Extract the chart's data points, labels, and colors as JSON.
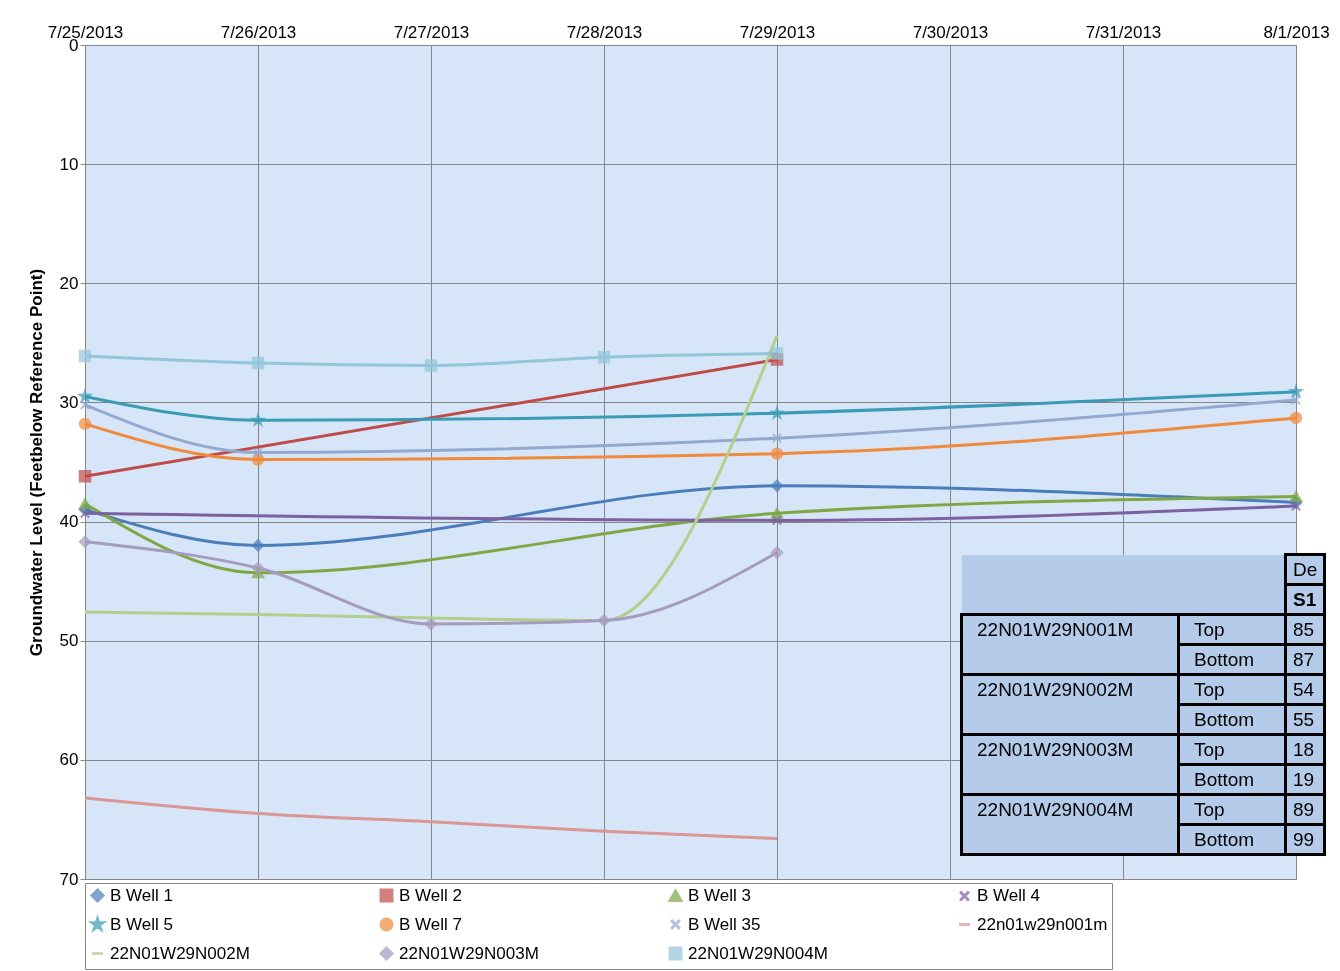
{
  "chart_data": {
    "type": "line",
    "ylabel": "Groundwater Level (Feetbelow Reference Point)",
    "x": [
      "2013-07-25",
      "2013-07-26",
      "2013-07-27",
      "2013-07-28",
      "2013-07-29",
      "2013-07-30",
      "2013-07-31",
      "2013-08-01"
    ],
    "xlim": [
      "2013-07-25",
      "2013-08-01"
    ],
    "xticks": [
      {
        "value": "2013-07-25",
        "label": "7/25/2013"
      },
      {
        "value": "2013-07-26",
        "label": "7/26/2013"
      },
      {
        "value": "2013-07-27",
        "label": "7/27/2013"
      },
      {
        "value": "2013-07-28",
        "label": "7/28/2013"
      },
      {
        "value": "2013-07-29",
        "label": "7/29/2013"
      },
      {
        "value": "2013-07-30",
        "label": "7/30/2013"
      },
      {
        "value": "2013-07-31",
        "label": "7/31/2013"
      },
      {
        "value": "2013-08-01",
        "label": "8/1/2013"
      }
    ],
    "ylim": [
      70,
      0
    ],
    "yticks": [
      0,
      10,
      20,
      30,
      40,
      50,
      60,
      70
    ],
    "grid": true,
    "legend": "bottom",
    "series": [
      {
        "name": "B Well 1",
        "color": "#4a7ebb",
        "marker": "diamond",
        "values": [
          39.0,
          42.0,
          null,
          null,
          37.0,
          null,
          null,
          38.4
        ]
      },
      {
        "name": "B Well 2",
        "color": "#be4b48",
        "marker": "square",
        "values": [
          36.2,
          null,
          null,
          null,
          26.4,
          null,
          null,
          null
        ]
      },
      {
        "name": "B Well 3",
        "color": "#7fa845",
        "marker": "triangle",
        "values": [
          38.5,
          44.3,
          null,
          null,
          39.3,
          null,
          null,
          37.9
        ]
      },
      {
        "name": "B Well 4",
        "color": "#7d60a0",
        "marker": "cross",
        "values": [
          39.3,
          null,
          null,
          null,
          39.9,
          null,
          null,
          38.7
        ]
      },
      {
        "name": "B Well 5",
        "color": "#3a9bb5",
        "marker": "star",
        "values": [
          29.5,
          31.5,
          null,
          null,
          30.9,
          null,
          null,
          29.1
        ]
      },
      {
        "name": "B Well 7",
        "color": "#f08a3a",
        "marker": "circle",
        "values": [
          31.8,
          34.8,
          null,
          null,
          34.3,
          null,
          null,
          31.3
        ]
      },
      {
        "name": "B Well 35",
        "color": "#93a9cf",
        "marker": "cross",
        "values": [
          30.2,
          34.2,
          null,
          null,
          33.0,
          null,
          null,
          29.8
        ]
      },
      {
        "name": "22n01w29n001m",
        "color": "#d99694",
        "marker": "none",
        "values": [
          63.2,
          64.5,
          65.2,
          66.0,
          66.6,
          null,
          null,
          null
        ]
      },
      {
        "name": "22N01W29N002M",
        "color": "#b3cf8c",
        "marker": "none",
        "values": [
          47.6,
          47.8,
          48.1,
          48.3,
          24.4,
          null,
          null,
          null
        ]
      },
      {
        "name": "22N01W29N003M",
        "color": "#a69bbd",
        "marker": "diamond",
        "values": [
          41.7,
          43.9,
          48.6,
          48.3,
          42.6,
          null,
          null,
          null
        ]
      },
      {
        "name": "22N01W29N004M",
        "color": "#93c6d9",
        "marker": "square",
        "values": [
          26.1,
          26.7,
          26.9,
          26.2,
          25.9,
          null,
          null,
          null
        ]
      }
    ],
    "annotations": [
      "De",
      "S1",
      "22N01W29N001M",
      "Top",
      "85",
      "Bottom",
      "87",
      "22N01W29N002M",
      "Top",
      "54",
      "Bottom",
      "55",
      "22N01W29N003M",
      "Top",
      "18",
      "Bottom",
      "19",
      "22N01W29N004M",
      "Top",
      "89",
      "Bottom",
      "99"
    ]
  }
}
